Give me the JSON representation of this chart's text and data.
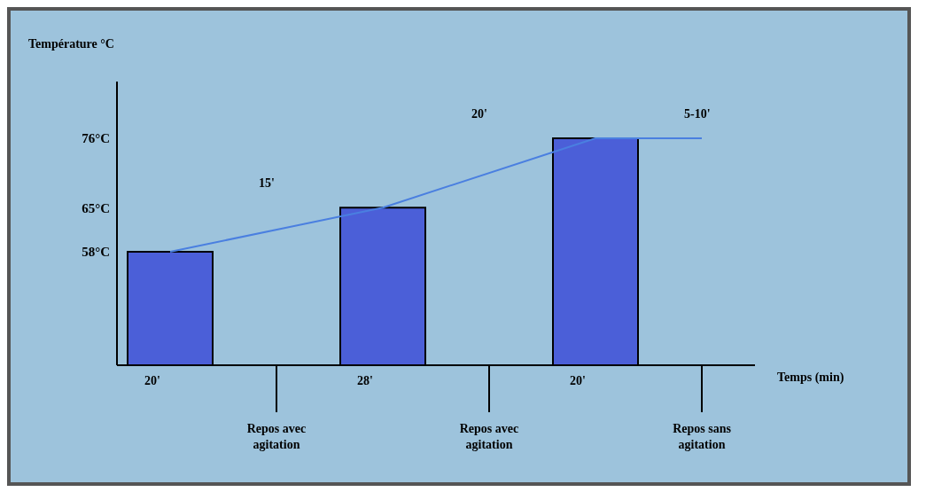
{
  "chart_data": {
    "type": "bar",
    "xlabel": "Temps (min)",
    "ylabel": "Température °C",
    "categories": [
      "20'",
      "Repos avec agitation",
      "28'",
      "Repos avec agitation",
      "20'",
      "Repos sans agitation"
    ],
    "series": [
      {
        "type": "line",
        "color": "#4a7fe0",
        "values": [
          58,
          null,
          65,
          null,
          76,
          76
        ]
      },
      {
        "color": "#4b5fd8",
        "values": [
          58,
          null,
          65,
          null,
          76,
          null
        ]
      }
    ],
    "ylim": [
      40,
      85
    ],
    "yticks": [
      {
        "value": 58,
        "label": "58°C"
      },
      {
        "value": 65,
        "label": "65°C"
      },
      {
        "value": 76,
        "label": "76°C"
      }
    ],
    "annotations": [
      "15'",
      "20'",
      "5-10'"
    ],
    "grid": false,
    "marker": "none"
  }
}
